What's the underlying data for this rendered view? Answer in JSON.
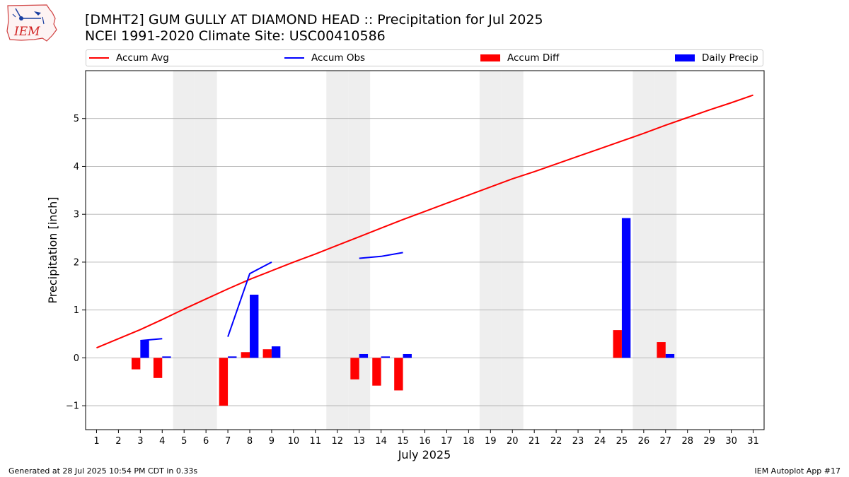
{
  "header": {
    "title_line1": "[DMHT2] GUM GULLY AT DIAMOND HEAD :: Precipitation for Jul 2025",
    "title_line2": "NCEI 1991-2020 Climate Site: USC00410586",
    "logo_text": "IEM"
  },
  "footer": {
    "left": "Generated at 28 Jul 2025 10:54 PM CDT in 0.33s",
    "right": "IEM Autoplot App #17"
  },
  "colors": {
    "accum_avg": "#ff0000",
    "accum_obs": "#0000ff",
    "accum_diff": "#ff0000",
    "daily_precip": "#0000ff",
    "weekend_shade": "#eeeeee",
    "grid": "#b0b0b0"
  },
  "chart_data": {
    "type": "bar",
    "title": "[DMHT2] GUM GULLY AT DIAMOND HEAD :: Precipitation for Jul 2025",
    "xlabel": "July 2025",
    "ylabel": "Precipitation [inch]",
    "ylim": [
      -1.5,
      6.0
    ],
    "xlim": [
      0.5,
      31.5
    ],
    "grid": "horizontal",
    "legend_placement": "top",
    "x_ticks": [
      "1",
      "2",
      "3",
      "4",
      "5",
      "6",
      "7",
      "8",
      "9",
      "10",
      "11",
      "12",
      "13",
      "14",
      "15",
      "16",
      "17",
      "18",
      "19",
      "20",
      "21",
      "22",
      "23",
      "24",
      "25",
      "26",
      "27",
      "28",
      "29",
      "30",
      "31"
    ],
    "y_ticks": [
      "−1",
      "0",
      "1",
      "2",
      "3",
      "4",
      "5"
    ],
    "y_tick_values": [
      -1,
      0,
      1,
      2,
      3,
      4,
      5
    ],
    "weekend_days": [
      5,
      6,
      12,
      13,
      19,
      20,
      26,
      27
    ],
    "series": [
      {
        "name": "Accum Avg",
        "kind": "line",
        "days": [
          1,
          2,
          3,
          4,
          5,
          6,
          7,
          8,
          9,
          10,
          11,
          12,
          13,
          14,
          15,
          16,
          17,
          18,
          19,
          20,
          21,
          22,
          23,
          24,
          25,
          26,
          27,
          28,
          29,
          30,
          31
        ],
        "values": [
          0.21,
          0.4,
          0.59,
          0.8,
          1.02,
          1.23,
          1.44,
          1.64,
          1.82,
          2.0,
          2.17,
          2.35,
          2.53,
          2.71,
          2.89,
          3.06,
          3.23,
          3.4,
          3.57,
          3.74,
          3.89,
          4.05,
          4.21,
          4.37,
          4.53,
          4.69,
          4.86,
          5.02,
          5.18,
          5.33,
          5.49
        ]
      },
      {
        "name": "Accum Obs",
        "kind": "line",
        "segments": [
          {
            "days": [
              3,
              4
            ],
            "values": [
              0.36,
              0.4
            ]
          },
          {
            "days": [
              7,
              8,
              9
            ],
            "values": [
              0.44,
              1.76,
              2.0
            ]
          },
          {
            "days": [
              13,
              14,
              15
            ],
            "values": [
              2.08,
              2.12,
              2.2
            ]
          }
        ]
      },
      {
        "name": "Accum Diff",
        "kind": "bar",
        "days": [
          3,
          4,
          7,
          8,
          9,
          13,
          14,
          15,
          25,
          27
        ],
        "values": [
          -0.24,
          -0.42,
          -1.0,
          0.12,
          0.18,
          -0.45,
          -0.58,
          -0.68,
          0.58,
          0.33
        ]
      },
      {
        "name": "Daily Precip",
        "kind": "bar",
        "days": [
          3,
          4,
          7,
          8,
          9,
          13,
          14,
          15,
          25,
          27
        ],
        "values": [
          0.36,
          0.03,
          0.03,
          1.32,
          0.24,
          0.08,
          0.03,
          0.08,
          2.92,
          0.08
        ]
      }
    ]
  }
}
